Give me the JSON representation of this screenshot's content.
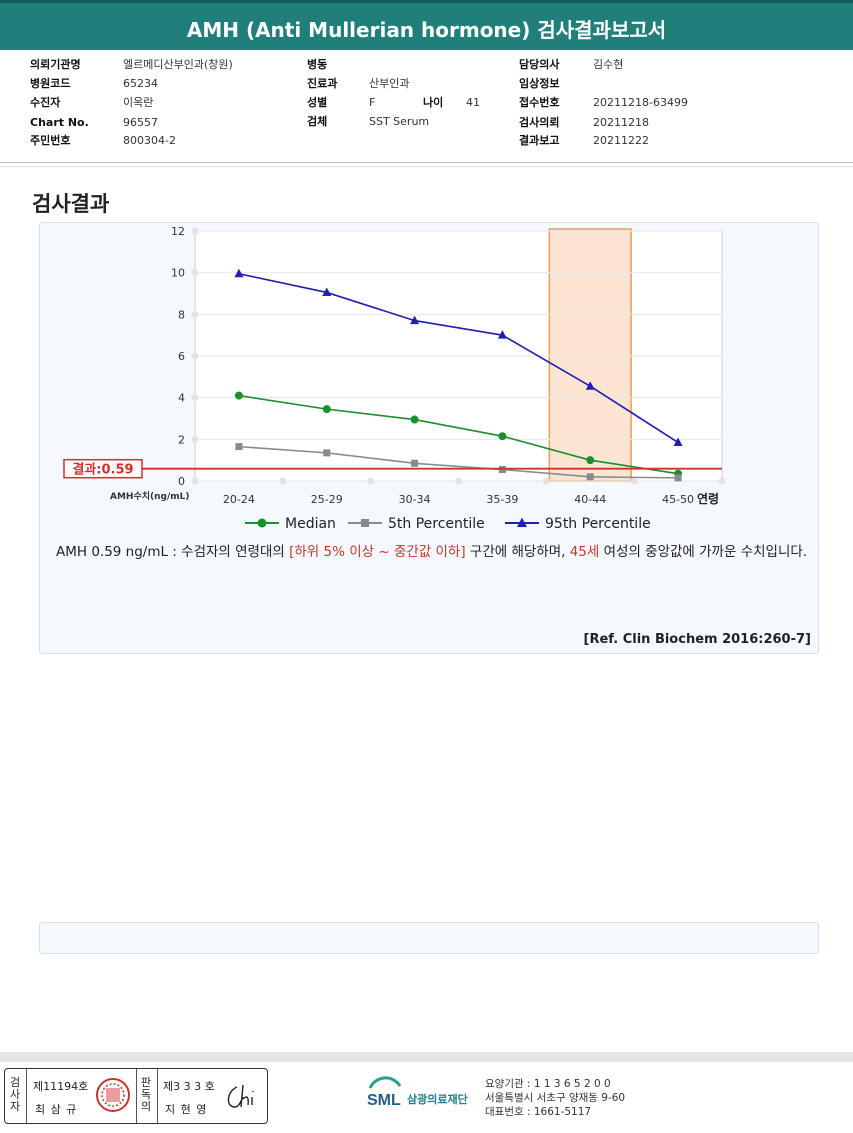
{
  "header": {
    "title": "AMH (Anti Mullerian hormone) 검사결과보고서"
  },
  "info": {
    "col1": [
      {
        "label": "의뢰기관명",
        "value": "엘르메디산부인과(창원)"
      },
      {
        "label": "병원코드",
        "value": "65234"
      },
      {
        "label": "수진자",
        "value": "이옥란"
      },
      {
        "label": "Chart No.",
        "value": "96557"
      },
      {
        "label": "주민번호",
        "value": "800304-2"
      }
    ],
    "col2": [
      {
        "label": "병동",
        "value": ""
      },
      {
        "label": "진료과",
        "value": "산부인과"
      },
      {
        "label": "성별",
        "value": "F"
      },
      {
        "label": "검체",
        "value": "SST Serum"
      }
    ],
    "age": {
      "label": "나이",
      "value": "41"
    },
    "col3": [
      {
        "label": "담당의사",
        "value": "김수현"
      },
      {
        "label": "임상정보",
        "value": ""
      },
      {
        "label": "접수번호",
        "value": "20211218-63499"
      },
      {
        "label": "검사의뢰",
        "value": "20211218"
      },
      {
        "label": "결과보고",
        "value": "20211222"
      }
    ]
  },
  "section": {
    "title": "검사결과"
  },
  "chart_data": {
    "type": "line",
    "categories": [
      "20-24",
      "25-29",
      "30-34",
      "35-39",
      "40-44",
      "45-50"
    ],
    "xlabel": "연령",
    "ylabel": "AMH수치(ng/mL)",
    "ylim": [
      0,
      12
    ],
    "yticks": [
      "0",
      "2",
      "4",
      "6",
      "8",
      "10",
      "12"
    ],
    "series": [
      {
        "name": "Median",
        "color": "#1a8f2e",
        "marker": "circle",
        "values": [
          4.1,
          3.45,
          2.95,
          2.15,
          1.0,
          0.35
        ]
      },
      {
        "name": "5th Percentile",
        "color": "#8a8a8a",
        "marker": "square",
        "values": [
          1.65,
          1.35,
          0.85,
          0.55,
          0.2,
          0.15
        ]
      },
      {
        "name": "95th Percentile",
        "color": "#1f1fb0",
        "marker": "triangle",
        "values": [
          9.95,
          9.05,
          7.7,
          7.0,
          4.55,
          1.85
        ]
      }
    ],
    "result": {
      "label": "결과:0.59",
      "value": 0.59,
      "color": "#d32f2f"
    },
    "highlight_category": "40-44",
    "grid": true,
    "legend": "bottom"
  },
  "note": {
    "p1": "AMH  0.59 ng/mL : 수검자의 연령대의 ",
    "range": "[하위 5% 이상 ~ 중간값 이하]",
    "p2": " 구간에 해당하며, ",
    "age": "45세",
    "p3": " 여성의 중앙값에 가까운 수치입니다."
  },
  "reference": "[Ref. Clin Biochem 2016:260-7]",
  "footer": {
    "tester_label": "검사자",
    "tester_no": "제11194호",
    "tester_name": "최 삼 규",
    "reviewer_label": "판독의",
    "reviewer_no": "제3 3 3 호",
    "reviewer_name": "지 현 영",
    "org_logo": "SML",
    "org_name": "삼광의료재단",
    "line1": "요양기관 : 1 1 3 6 5 2 0 0",
    "line2": "서울특별시 서초구 양재동 9-60",
    "line3": "대표번호 : 1661-5117"
  }
}
